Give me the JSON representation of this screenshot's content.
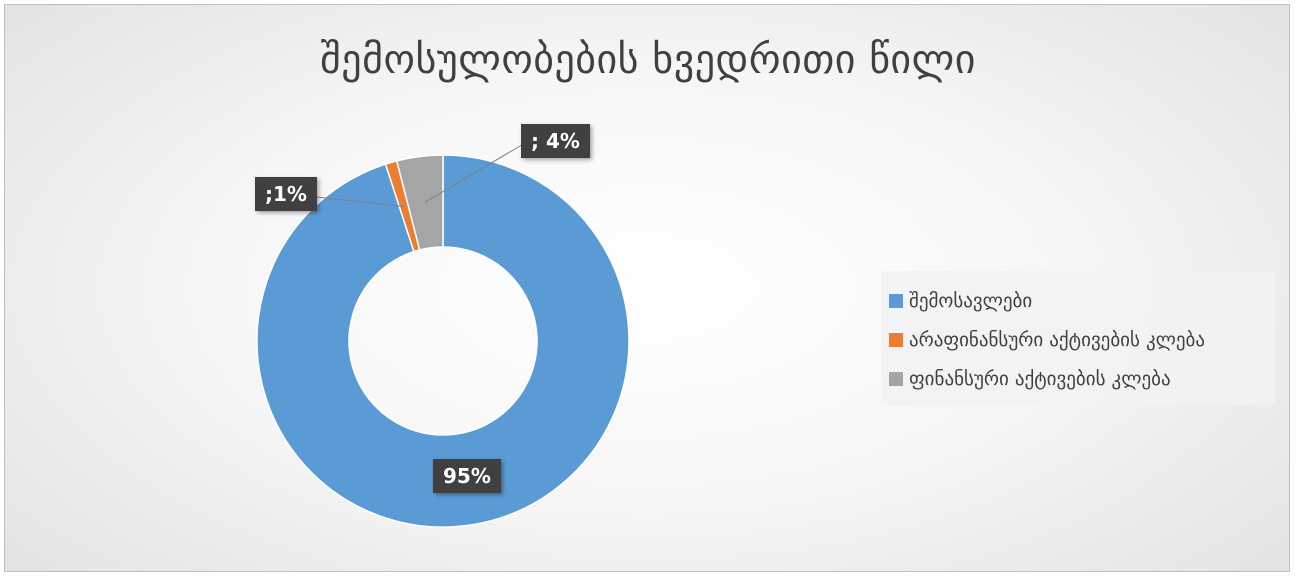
{
  "chart_data": {
    "type": "pie",
    "variant": "doughnut",
    "title": "შემოსულობების ხვედრითი წილი",
    "categories": [
      "შემოსავლები",
      "არაფინანსური აქტივების კლება",
      "ფინანსური აქტივების კლება"
    ],
    "values": [
      95,
      1,
      4
    ],
    "value_unit": "%",
    "data_labels": [
      "95%",
      ";1%",
      "; 4%"
    ],
    "colors": [
      "#5B9BD5",
      "#ED7D31",
      "#A5A5A5"
    ],
    "legend_position": "right"
  }
}
